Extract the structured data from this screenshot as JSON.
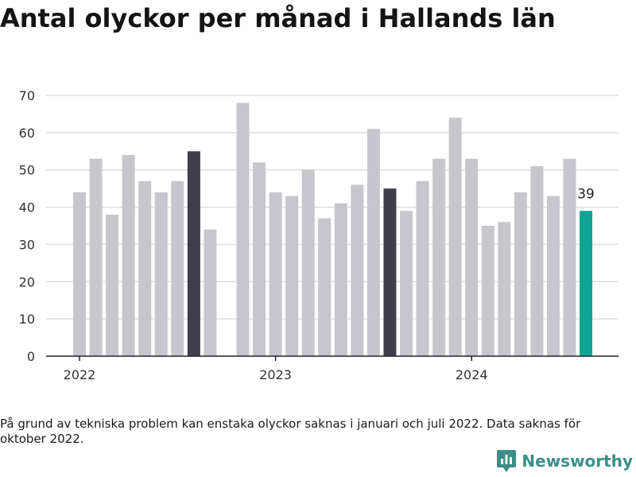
{
  "title": "Antal olyckor per månad i Hallands län",
  "note": "På grund av tekniska problem kan enstaka olyckor saknas i januari och juli 2022. Data saknas för oktober 2022.",
  "brand": {
    "name": "Newsworthy",
    "color": "#3b8f86"
  },
  "colors": {
    "default": "#c7c6cd",
    "highlight": "#3f3e4a",
    "current": "#12a396",
    "grid": "#dddddd",
    "axis": "#222222",
    "text": "#333333"
  },
  "chart_data": {
    "type": "bar",
    "title": "Antal olyckor per månad i Hallands län",
    "xlabel": "",
    "ylabel": "",
    "ylim": [
      0,
      70
    ],
    "y_ticks": [
      0,
      10,
      20,
      30,
      40,
      50,
      60,
      70
    ],
    "x_tick_labels": [
      "2022",
      "2023",
      "2024"
    ],
    "grid": true,
    "legend": false,
    "data_labels": [
      {
        "category": "2024-08",
        "text": "39"
      }
    ],
    "categories": [
      "2022-01",
      "2022-02",
      "2022-03",
      "2022-04",
      "2022-05",
      "2022-06",
      "2022-07",
      "2022-08",
      "2022-09",
      "2022-10",
      "2022-11",
      "2022-12",
      "2023-01",
      "2023-02",
      "2023-03",
      "2023-04",
      "2023-05",
      "2023-06",
      "2023-07",
      "2023-08",
      "2023-09",
      "2023-10",
      "2023-11",
      "2023-12",
      "2024-01",
      "2024-02",
      "2024-03",
      "2024-04",
      "2024-05",
      "2024-06",
      "2024-07",
      "2024-08"
    ],
    "values": [
      44,
      53,
      38,
      54,
      47,
      44,
      47,
      55,
      34,
      null,
      68,
      52,
      44,
      43,
      50,
      37,
      41,
      46,
      61,
      45,
      39,
      47,
      53,
      64,
      53,
      35,
      36,
      44,
      51,
      43,
      53,
      39
    ],
    "highlighted": [
      "2022-08",
      "2023-08"
    ],
    "current": "2024-08"
  }
}
